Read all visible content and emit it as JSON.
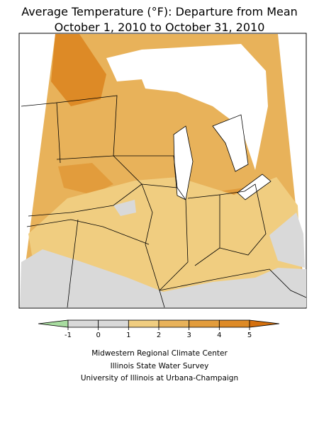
{
  "title": [
    "Average Temperature (°F): Departure from Mean",
    "October 1, 2010 to October 31, 2010"
  ],
  "legend": {
    "ticks": [
      -1,
      0,
      1,
      2,
      3,
      4,
      5
    ],
    "colors": [
      "#a8dca0",
      "#d9d9d9",
      "#d9d9d9",
      "#f0cd80",
      "#e8b25a",
      "#e29c3c",
      "#dd8a26",
      "#d4700e"
    ]
  },
  "credits": [
    "Midwestern Regional Climate Center",
    "Illinois State Water Survey",
    "University of Illinois at Urbana-Champaign"
  ]
}
